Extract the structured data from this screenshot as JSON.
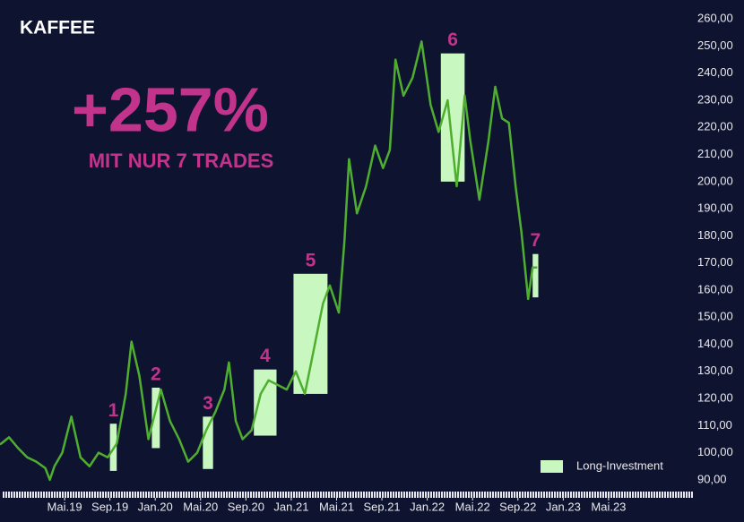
{
  "chart_data": {
    "type": "line",
    "title": "KAFFEE",
    "headline": "+257%",
    "subheadline": "MIT NUR 7 TRADES",
    "color": "#4fae2f",
    "x": [
      -1.7,
      -0.9,
      -0.1,
      0.7,
      1.5,
      2.3,
      2.7,
      3.1,
      3.8,
      4.6,
      5.4,
      6.2,
      7.0,
      7.8,
      8.6,
      9.4,
      9.9,
      10.6,
      11.4,
      12.1,
      12.5,
      13.3,
      14.1,
      14.9,
      15.7,
      16.5,
      17.3,
      18.1,
      18.5,
      19.1,
      19.7,
      20.5,
      21.3,
      22.0,
      22.8,
      23.6,
      24.4,
      25.2,
      26.0,
      26.8,
      27.4,
      28.2,
      28.7,
      29.1,
      29.8,
      30.6,
      31.4,
      32.1,
      32.7,
      33.2,
      33.9,
      34.7,
      35.5,
      36.3,
      37.0,
      37.8,
      38.6,
      39.3,
      39.8,
      40.6,
      41.4,
      42.0,
      42.6,
      43.2,
      43.8,
      44.3,
      44.9,
      45.3,
      45.7
    ],
    "values": [
      103,
      105.7,
      101.7,
      98.3,
      96.7,
      94.3,
      90,
      95,
      100,
      113.3,
      98.3,
      95,
      100,
      98.3,
      103.3,
      121.7,
      141,
      128.3,
      105,
      116.7,
      123.3,
      111.7,
      105,
      96.7,
      100,
      108.3,
      115,
      123.3,
      133.3,
      111.7,
      105,
      108.3,
      121.7,
      126.7,
      125,
      123.3,
      130,
      121.7,
      138.3,
      155,
      161.7,
      151.7,
      178.3,
      208.3,
      188.3,
      198.3,
      213.3,
      205,
      211.7,
      245,
      231.7,
      238.3,
      251.7,
      228.3,
      218.3,
      230,
      198.3,
      231.7,
      215,
      193.3,
      215,
      235,
      223.3,
      221.7,
      198.3,
      181.7,
      156.7,
      168.3,
      168.3
    ],
    "xlim": [
      -1.7,
      59.6
    ],
    "xticks": [
      {
        "value": 4,
        "label": "Mai.19"
      },
      {
        "value": 8,
        "label": "Sep.19"
      },
      {
        "value": 12,
        "label": "Jan.20"
      },
      {
        "value": 16,
        "label": "Mai.20"
      },
      {
        "value": 20,
        "label": "Sep.20"
      },
      {
        "value": 24,
        "label": "Jan.21"
      },
      {
        "value": 28,
        "label": "Mai.21"
      },
      {
        "value": 32,
        "label": "Sep.21"
      },
      {
        "value": 36,
        "label": "Jan.22"
      },
      {
        "value": 40,
        "label": "Mai.22"
      },
      {
        "value": 44,
        "label": "Sep.22"
      },
      {
        "value": 48,
        "label": "Jan.23"
      },
      {
        "value": 52,
        "label": "Mai.23"
      }
    ],
    "ylim": [
      86,
      267
    ],
    "yticks": [
      {
        "value": 90,
        "label": "90,00"
      },
      {
        "value": 100,
        "label": "100,00"
      },
      {
        "value": 110,
        "label": "110,00"
      },
      {
        "value": 120,
        "label": "120,00"
      },
      {
        "value": 130,
        "label": "130,00"
      },
      {
        "value": 140,
        "label": "140,00"
      },
      {
        "value": 150,
        "label": "150,00"
      },
      {
        "value": 160,
        "label": "160,00"
      },
      {
        "value": 170,
        "label": "170,00"
      },
      {
        "value": 180,
        "label": "180,00"
      },
      {
        "value": 190,
        "label": "190,00"
      },
      {
        "value": 200,
        "label": "200,00"
      },
      {
        "value": 210,
        "label": "210,00"
      },
      {
        "value": 220,
        "label": "220,00"
      },
      {
        "value": 230,
        "label": "230,00"
      },
      {
        "value": 240,
        "label": "240,00"
      },
      {
        "value": 250,
        "label": "250,00"
      },
      {
        "value": 260,
        "label": "260,00"
      }
    ],
    "trades": {
      "name": "Long-Investment",
      "color": "#c8f8c0",
      "label_color": "#c2338c",
      "boxes": [
        {
          "label": "1",
          "x": [
            8.0,
            8.6
          ],
          "y": [
            93.3,
            110.7
          ]
        },
        {
          "label": "2",
          "x": [
            11.7,
            12.4
          ],
          "y": [
            101.7,
            124
          ]
        },
        {
          "label": "3",
          "x": [
            16.2,
            17.1
          ],
          "y": [
            94,
            113.3
          ]
        },
        {
          "label": "4",
          "x": [
            20.7,
            22.7
          ],
          "y": [
            106.3,
            130.7
          ]
        },
        {
          "label": "5",
          "x": [
            24.2,
            27.2
          ],
          "y": [
            121.7,
            166
          ]
        },
        {
          "label": "6",
          "x": [
            37.2,
            39.3
          ],
          "y": [
            200,
            247.3
          ]
        },
        {
          "label": "7",
          "x": [
            45.3,
            45.8
          ],
          "y": [
            157.3,
            173.3
          ]
        }
      ]
    }
  }
}
